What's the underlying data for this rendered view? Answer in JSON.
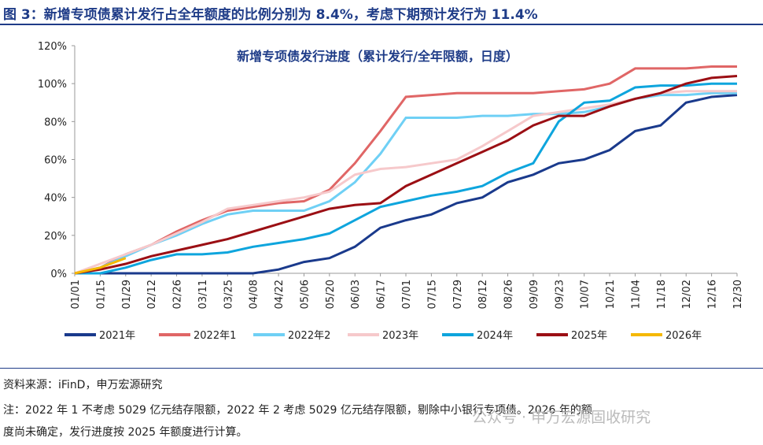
{
  "header": {
    "title": "图 3：新增专项债累计发行占全年额度的比例分别为 8.4%，考虑下期预计发行为 11.4%"
  },
  "footer": {
    "source": "资料来源：iFinD，申万宏源研究",
    "note_line1": "注：2022 年 1 不考虑 5029 亿元结存限额，2022 年 2 考虑 5029 亿元结存限额，剔除中小银行专项债。2026 年的额",
    "note_line2": "度尚未确定，发行进度按 2025 年额度进行计算。",
    "watermark": "公众号 · 申万宏源固收研究"
  },
  "chart_data": {
    "type": "line",
    "title": "新增专项债发行进度（累计发行/全年限额，日度）",
    "categories": [
      "01/01",
      "01/15",
      "01/29",
      "02/12",
      "02/26",
      "03/11",
      "03/25",
      "04/08",
      "04/22",
      "05/06",
      "05/20",
      "06/03",
      "06/17",
      "07/01",
      "07/15",
      "07/29",
      "08/12",
      "08/26",
      "09/09",
      "09/23",
      "10/07",
      "10/21",
      "11/04",
      "11/18",
      "12/02",
      "12/16",
      "12/30"
    ],
    "ylim": [
      0,
      120
    ],
    "yticks": [
      {
        "value": 0,
        "label": "0%"
      },
      {
        "value": 20,
        "label": "20%"
      },
      {
        "value": 40,
        "label": "40%"
      },
      {
        "value": 60,
        "label": "60%"
      },
      {
        "value": 80,
        "label": "80%"
      },
      {
        "value": 100,
        "label": "100%"
      },
      {
        "value": 120,
        "label": "120%"
      }
    ],
    "series": [
      {
        "name": "2021年",
        "color": "#1a3a8c",
        "values": [
          0,
          0,
          0,
          0,
          0,
          0,
          0,
          0,
          2,
          6,
          8,
          14,
          24,
          28,
          31,
          37,
          40,
          48,
          52,
          58,
          60,
          65,
          75,
          78,
          90,
          93,
          94
        ]
      },
      {
        "name": "2022年1",
        "color": "#e06666",
        "values": [
          0,
          3,
          10,
          15,
          22,
          28,
          33,
          35,
          37,
          38,
          44,
          58,
          75,
          93,
          94,
          95,
          95,
          95,
          95,
          96,
          97,
          100,
          108,
          108,
          108,
          109,
          109
        ]
      },
      {
        "name": "2022年2",
        "color": "#6fd0f5",
        "values": [
          0,
          3,
          9,
          15,
          20,
          26,
          31,
          33,
          33,
          33,
          38,
          48,
          63,
          82,
          82,
          82,
          83,
          83,
          84,
          84,
          85,
          88,
          92,
          94,
          94,
          95,
          95
        ]
      },
      {
        "name": "2023年",
        "color": "#f6c9cb",
        "values": [
          0,
          5,
          10,
          15,
          21,
          27,
          34,
          36,
          38,
          40,
          43,
          52,
          55,
          56,
          58,
          60,
          67,
          75,
          83,
          85,
          87,
          89,
          92,
          95,
          96,
          96,
          96
        ]
      },
      {
        "name": "2024年",
        "color": "#0ea5dd",
        "values": [
          0,
          0,
          3,
          7,
          10,
          10,
          11,
          14,
          16,
          18,
          21,
          28,
          35,
          38,
          41,
          43,
          46,
          53,
          58,
          80,
          90,
          91,
          98,
          99,
          99,
          100,
          100
        ]
      },
      {
        "name": "2025年",
        "color": "#9b0f14",
        "values": [
          0,
          2,
          5,
          9,
          12,
          15,
          18,
          22,
          26,
          30,
          34,
          36,
          37,
          46,
          52,
          58,
          64,
          70,
          78,
          83,
          83,
          88,
          92,
          95,
          100,
          103,
          104
        ]
      },
      {
        "name": "2026年",
        "color": "#f5b800",
        "values": [
          0,
          3,
          8,
          null,
          null,
          null,
          null,
          null,
          null,
          null,
          null,
          null,
          null,
          null,
          null,
          null,
          null,
          null,
          null,
          null,
          null,
          null,
          null,
          null,
          null,
          null,
          null
        ]
      }
    ]
  }
}
